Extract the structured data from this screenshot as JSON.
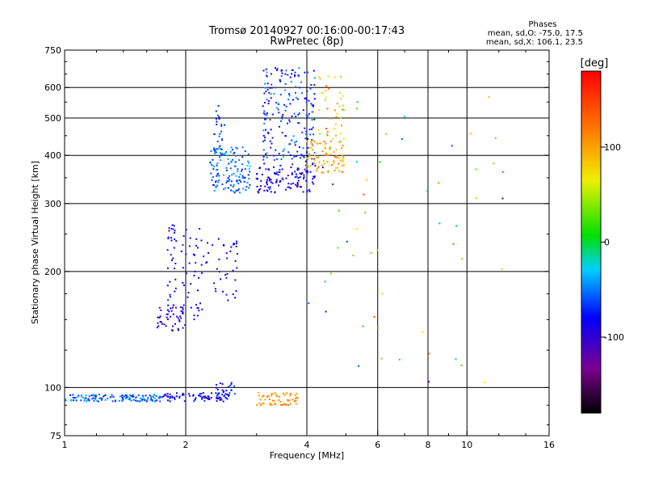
{
  "chart_data": {
    "type": "scatter",
    "title": "Tromsø 20140927 00:16:00-00:17:43",
    "subtitle": "RwPretec (8p)",
    "xlabel": "Frequency [MHz]",
    "ylabel": "Stationary phase Virtual Height [km]",
    "x_scale": "log",
    "y_scale": "log",
    "xlim": [
      1,
      16
    ],
    "ylim": [
      75,
      750
    ],
    "x_ticks": [
      1,
      2,
      4,
      6,
      8,
      10,
      16
    ],
    "y_ticks": [
      75,
      100,
      200,
      300,
      400,
      500,
      600,
      750
    ],
    "grid": true,
    "phase_stats": {
      "heading": "Phases",
      "line_o": "mean, sd,O: -75.0, 17.5",
      "line_x": "mean, sd,X: 106.1, 23.5"
    },
    "colorbar": {
      "label": "[deg]",
      "range": [
        -180,
        180
      ],
      "ticks": [
        -100,
        0,
        100
      ],
      "colormap": "rainbow: black-purple-blue-cyan-green-yellow-orange-red"
    },
    "point_groups": [
      {
        "f_range": [
          1.0,
          1.75
        ],
        "h_range": [
          92,
          96
        ],
        "phase_mean": -55,
        "phase_sd": 20,
        "count": 130
      },
      {
        "f_range": [
          1.75,
          2.6
        ],
        "h_range": [
          92,
          97
        ],
        "phase_mean": -80,
        "phase_sd": 15,
        "count": 80
      },
      {
        "f_range": [
          2.35,
          2.65
        ],
        "h_range": [
          95,
          103
        ],
        "phase_mean": -75,
        "phase_sd": 15,
        "count": 25
      },
      {
        "f_range": [
          3.0,
          3.8
        ],
        "h_range": [
          90,
          97
        ],
        "phase_mean": 110,
        "phase_sd": 15,
        "count": 60
      },
      {
        "f_range": [
          1.7,
          2.0
        ],
        "h_range": [
          140,
          165
        ],
        "phase_mean": -95,
        "phase_sd": 10,
        "count": 45
      },
      {
        "f_range": [
          1.8,
          1.9
        ],
        "h_range": [
          150,
          265
        ],
        "phase_mean": -85,
        "phase_sd": 15,
        "count": 35
      },
      {
        "f_range": [
          1.95,
          2.2
        ],
        "h_range": [
          150,
          262
        ],
        "phase_mean": -90,
        "phase_sd": 12,
        "count": 40
      },
      {
        "f_range": [
          2.2,
          2.7
        ],
        "h_range": [
          165,
          245
        ],
        "phase_mean": -85,
        "phase_sd": 12,
        "count": 40
      },
      {
        "f_range": [
          2.3,
          2.9
        ],
        "h_range": [
          320,
          420
        ],
        "phase_mean": -55,
        "phase_sd": 20,
        "count": 140
      },
      {
        "f_range": [
          2.35,
          2.5
        ],
        "h_range": [
          420,
          540
        ],
        "phase_mean": -70,
        "phase_sd": 15,
        "count": 20
      },
      {
        "f_range": [
          3.0,
          4.2
        ],
        "h_range": [
          320,
          380
        ],
        "phase_mean": -85,
        "phase_sd": 15,
        "count": 120
      },
      {
        "f_range": [
          3.1,
          4.2
        ],
        "h_range": [
          380,
          680
        ],
        "phase_mean": -70,
        "phase_sd": 25,
        "count": 200
      },
      {
        "f_range": [
          4.0,
          5.0
        ],
        "h_range": [
          360,
          440
        ],
        "phase_mean": 100,
        "phase_sd": 20,
        "count": 80
      },
      {
        "f_range": [
          4.2,
          5.0
        ],
        "h_range": [
          440,
          650
        ],
        "phase_mean": 80,
        "phase_sd": 40,
        "count": 40
      },
      {
        "f_range": [
          4.0,
          12.5
        ],
        "h_range": [
          100,
          600
        ],
        "phase_mean": 40,
        "phase_sd": 90,
        "count": 55
      }
    ]
  }
}
